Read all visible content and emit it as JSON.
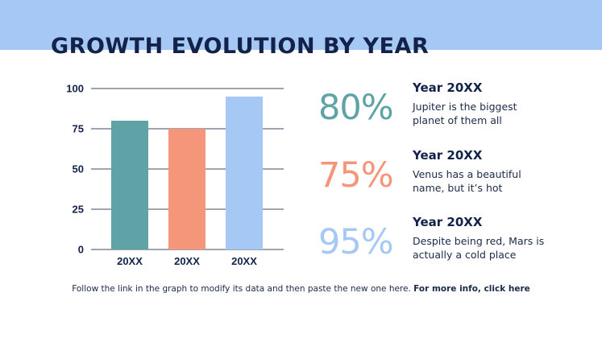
{
  "colors": {
    "band": "#a6c8f5",
    "teal": "#5fa3a6",
    "coral": "#f5957a",
    "blue": "#a6c8f5",
    "navy": "#12224a"
  },
  "title": "GROWTH EVOLUTION BY YEAR",
  "chart_data": {
    "type": "bar",
    "categories": [
      "20XX",
      "20XX",
      "20XX"
    ],
    "values": [
      80,
      75,
      95
    ],
    "bar_colors": [
      "#5fa3a6",
      "#f5957a",
      "#a6c8f5"
    ],
    "yticks": [
      0,
      25,
      50,
      75,
      100
    ],
    "ylim": [
      0,
      100
    ],
    "grid": true,
    "title": "",
    "xlabel": "",
    "ylabel": ""
  },
  "stats": [
    {
      "pct": "80%",
      "color": "#5fa3a6",
      "year": "Year 20XX",
      "desc": "Jupiter is the biggest planet of them all"
    },
    {
      "pct": "75%",
      "color": "#f5957a",
      "year": "Year 20XX",
      "desc": "Venus has a beautiful name, but it’s hot"
    },
    {
      "pct": "95%",
      "color": "#a6c8f5",
      "year": "Year 20XX",
      "desc": "Despite being red, Mars is actually a cold place"
    }
  ],
  "footer": {
    "text": "Follow the link in the graph to modify its data and then paste the new one here.",
    "link": "For more info, click here"
  }
}
